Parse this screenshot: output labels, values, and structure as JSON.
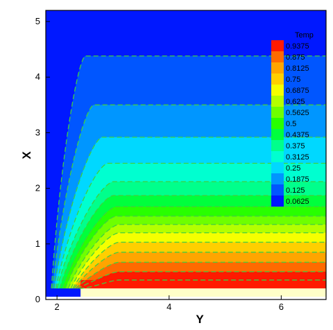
{
  "chart_data": {
    "type": "heatmap",
    "subtype": "filled-contour",
    "xlabel": "Y",
    "ylabel": "X",
    "xlim": [
      1.8,
      6.8
    ],
    "ylim": [
      0,
      5.2
    ],
    "xticks": [
      "2",
      "4",
      "6"
    ],
    "xtick_values": [
      2,
      4,
      6
    ],
    "yticks": [
      "0",
      "1",
      "2",
      "3",
      "4",
      "5"
    ],
    "ytick_values": [
      0,
      1,
      2,
      3,
      4,
      5
    ],
    "legend": {
      "title": "Temp",
      "placement": "top-right, inside plot",
      "levels": [
        "0.9375",
        "0.875",
        "0.8125",
        "0.75",
        "0.6875",
        "0.625",
        "0.5625",
        "0.5",
        "0.4375",
        "0.375",
        "0.3125",
        "0.25",
        "0.1875",
        "0.125",
        "0.0625"
      ],
      "colors": [
        "#ff1a00",
        "#ff6a00",
        "#ffa500",
        "#ffcf00",
        "#f5ff00",
        "#b4ff00",
        "#6eff00",
        "#28ff00",
        "#00ff3c",
        "#00ff8c",
        "#00ffd0",
        "#00d8ff",
        "#0096ff",
        "#0056ff",
        "#0018ff"
      ]
    },
    "contour_lines": {
      "color": "#3fcf3f",
      "style": "dashed",
      "plateau_x": [
        4.38,
        3.5,
        2.92,
        2.45,
        2.12,
        1.87,
        1.67,
        1.5,
        1.35,
        1.2,
        1.03,
        0.85,
        0.67,
        0.5,
        0.35
      ],
      "left_foot_y": [
        1.9,
        1.92,
        1.95,
        1.98,
        2.0,
        2.05,
        2.1,
        2.15,
        2.2,
        2.25,
        2.28,
        2.3,
        2.33,
        2.36,
        2.4
      ],
      "knee_y": [
        2.5,
        2.65,
        2.8,
        2.9,
        3.0,
        3.0,
        3.05,
        3.05,
        3.1,
        3.1,
        3.1,
        3.1,
        3.1,
        3.1,
        3.1
      ]
    },
    "background_color": "#0018ff",
    "bottom_strip_color": "#ffffc8"
  }
}
